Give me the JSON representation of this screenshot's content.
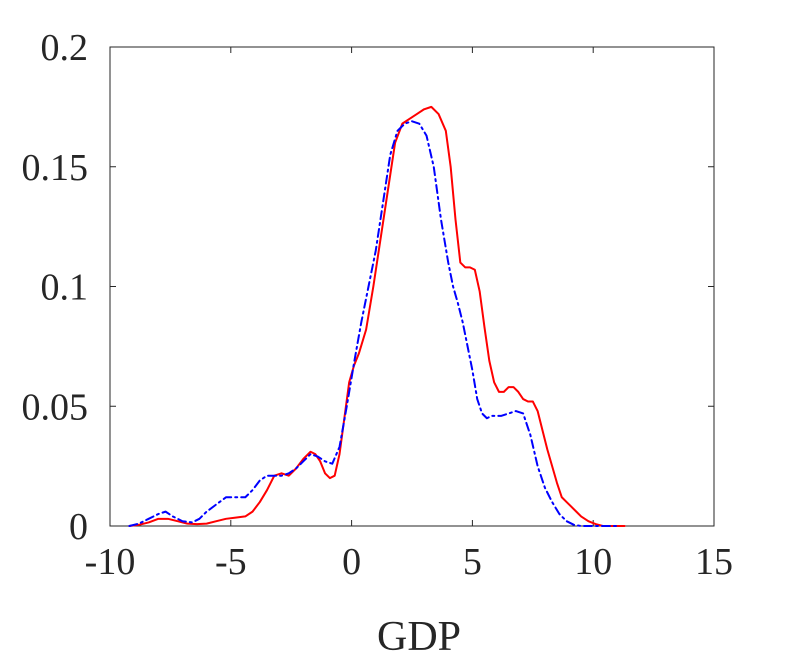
{
  "chart_data": {
    "type": "line",
    "title": "",
    "xlabel": "GDP",
    "ylabel": "",
    "xlim": [
      -10,
      15
    ],
    "ylim": [
      0,
      0.2
    ],
    "xticks": [
      -10,
      -5,
      0,
      5,
      10,
      15
    ],
    "xtick_labels": [
      "-10",
      "-5",
      "0",
      "5",
      "10",
      "15"
    ],
    "yticks": [
      0,
      0.05,
      0.1,
      0.15,
      0.2
    ],
    "ytick_labels": [
      "0",
      "0.05",
      "0.1",
      "0.15",
      "0.2"
    ],
    "grid": false,
    "box": true,
    "series": [
      {
        "color": "#ff0000",
        "line_style": "solid",
        "x": [
          -9.2,
          -8.8,
          -8.4,
          -8.0,
          -7.6,
          -7.2,
          -6.8,
          -6.4,
          -6.0,
          -5.6,
          -5.2,
          -4.8,
          -4.4,
          -4.1,
          -3.8,
          -3.5,
          -3.2,
          -2.9,
          -2.6,
          -2.3,
          -2.0,
          -1.7,
          -1.5,
          -1.3,
          -1.1,
          -0.9,
          -0.7,
          -0.5,
          -0.3,
          -0.1,
          0.1,
          0.3,
          0.6,
          0.9,
          1.2,
          1.5,
          1.8,
          2.1,
          2.4,
          2.7,
          3.0,
          3.3,
          3.6,
          3.9,
          4.1,
          4.3,
          4.5,
          4.7,
          4.9,
          5.1,
          5.3,
          5.5,
          5.7,
          5.9,
          6.1,
          6.3,
          6.5,
          6.7,
          6.9,
          7.1,
          7.3,
          7.5,
          7.7,
          7.9,
          8.1,
          8.3,
          8.5,
          8.7,
          8.9,
          9.1,
          9.3,
          9.5,
          9.8,
          10.1,
          10.4,
          10.7,
          11.0,
          11.3
        ],
        "y": [
          0.0,
          0.0005,
          0.0015,
          0.003,
          0.003,
          0.002,
          0.001,
          0.0008,
          0.001,
          0.002,
          0.003,
          0.0035,
          0.004,
          0.006,
          0.01,
          0.015,
          0.021,
          0.022,
          0.021,
          0.024,
          0.028,
          0.031,
          0.03,
          0.027,
          0.022,
          0.02,
          0.021,
          0.03,
          0.045,
          0.06,
          0.067,
          0.072,
          0.082,
          0.1,
          0.12,
          0.14,
          0.16,
          0.168,
          0.17,
          0.172,
          0.174,
          0.175,
          0.172,
          0.165,
          0.15,
          0.128,
          0.11,
          0.108,
          0.108,
          0.107,
          0.098,
          0.083,
          0.069,
          0.06,
          0.056,
          0.056,
          0.058,
          0.058,
          0.056,
          0.053,
          0.052,
          0.052,
          0.048,
          0.04,
          0.032,
          0.025,
          0.018,
          0.012,
          0.01,
          0.008,
          0.006,
          0.004,
          0.002,
          0.0008,
          0.0,
          0.0,
          0.0,
          0.0
        ]
      },
      {
        "color": "#0000ff",
        "line_style": "dash-dot",
        "x": [
          -9.2,
          -8.8,
          -8.4,
          -8.0,
          -7.7,
          -7.4,
          -7.0,
          -6.6,
          -6.3,
          -6.0,
          -5.6,
          -5.2,
          -4.8,
          -4.4,
          -4.1,
          -3.8,
          -3.5,
          -3.2,
          -2.9,
          -2.6,
          -2.3,
          -2.0,
          -1.7,
          -1.4,
          -1.1,
          -0.8,
          -0.5,
          -0.2,
          0.1,
          0.4,
          0.7,
          1.0,
          1.3,
          1.6,
          1.9,
          2.2,
          2.5,
          2.8,
          3.1,
          3.4,
          3.7,
          4.0,
          4.2,
          4.4,
          4.6,
          4.8,
          5.0,
          5.2,
          5.4,
          5.6,
          5.8,
          6.0,
          6.2,
          6.5,
          6.8,
          7.1,
          7.4,
          7.7,
          8.0,
          8.3,
          8.6,
          8.9,
          9.2,
          9.5,
          9.8,
          10.1,
          10.4,
          10.7,
          11.0
        ],
        "y": [
          0.0,
          0.001,
          0.003,
          0.005,
          0.006,
          0.004,
          0.002,
          0.0015,
          0.003,
          0.006,
          0.009,
          0.012,
          0.012,
          0.012,
          0.015,
          0.019,
          0.021,
          0.021,
          0.021,
          0.022,
          0.024,
          0.027,
          0.03,
          0.029,
          0.027,
          0.026,
          0.033,
          0.05,
          0.068,
          0.085,
          0.1,
          0.115,
          0.135,
          0.155,
          0.165,
          0.168,
          0.169,
          0.168,
          0.163,
          0.15,
          0.128,
          0.11,
          0.1,
          0.093,
          0.085,
          0.075,
          0.065,
          0.053,
          0.047,
          0.045,
          0.046,
          0.046,
          0.046,
          0.047,
          0.048,
          0.047,
          0.038,
          0.025,
          0.016,
          0.01,
          0.005,
          0.002,
          0.0005,
          0.0,
          0.0,
          0.0,
          0.0,
          0.0,
          0.0
        ]
      }
    ]
  }
}
